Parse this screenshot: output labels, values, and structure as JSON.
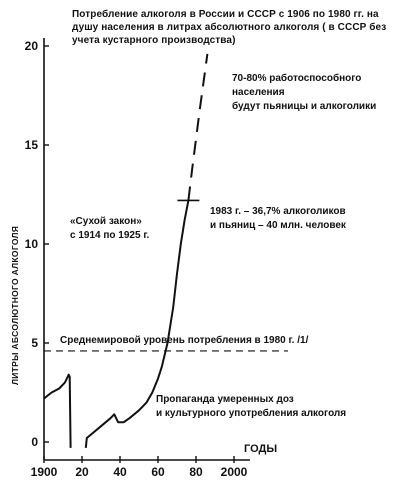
{
  "chart_data": {
    "type": "line",
    "title": "Потребление алкоголя в России и СССР с 1906 по 1980 гг. на душу населения в литрах абсолютного алкоголя ( в СССР без учета кустарного производства)",
    "ylabel": "ЛИТРЫ АБСОЛЮТНОГО АЛКОГОЛЯ",
    "xlabel": "ГОДЫ",
    "xlim": [
      1900,
      2000
    ],
    "ylim": [
      0,
      20
    ],
    "x_ticks": [
      "1900",
      "20",
      "40",
      "60",
      "80",
      "2000"
    ],
    "x_tick_values": [
      1900,
      1920,
      1940,
      1960,
      1980,
      2000
    ],
    "y_ticks": [
      "0",
      "5",
      "10",
      "15",
      "20"
    ],
    "y_tick_values": [
      0,
      5,
      10,
      15,
      20
    ],
    "series": [
      {
        "style": "solid",
        "segments": [
          [
            [
              1900,
              2.2
            ],
            [
              1904,
              2.5
            ],
            [
              1908,
              2.7
            ],
            [
              1911,
              3.0
            ],
            [
              1913,
              3.4
            ],
            [
              1913.5,
              3.3
            ],
            [
              1914,
              -0.3
            ]
          ],
          [
            [
              1922,
              -0.3
            ],
            [
              1922.5,
              0.2
            ],
            [
              1925,
              0.4
            ],
            [
              1930,
              0.8
            ],
            [
              1935,
              1.2
            ],
            [
              1937,
              1.4
            ],
            [
              1939,
              1.0
            ],
            [
              1942,
              1.0
            ],
            [
              1945,
              1.2
            ],
            [
              1950,
              1.6
            ],
            [
              1954,
              2.0
            ],
            [
              1957,
              2.5
            ],
            [
              1960,
              3.2
            ],
            [
              1962,
              3.8
            ],
            [
              1965,
              5.0
            ],
            [
              1968,
              6.8
            ],
            [
              1970,
              8.5
            ],
            [
              1972,
              10.0
            ],
            [
              1974,
              11.2
            ],
            [
              1976,
              12.2
            ]
          ]
        ]
      },
      {
        "style": "dashed",
        "segments": [
          [
            [
              1976,
              12.2
            ],
            [
              1978,
              13.8
            ],
            [
              1980,
              15.3
            ],
            [
              1982,
              16.8
            ],
            [
              1984,
              18.2
            ],
            [
              1986,
              19.6
            ]
          ]
        ]
      }
    ],
    "reference_line": {
      "value": 4.6,
      "style": "dashed",
      "label": "Среднемировой уровень потребления в 1980 г. /1/"
    },
    "markers": [
      {
        "x": 1976,
        "y": 12.2,
        "shape": "tick"
      }
    ],
    "annotations": {
      "dry_law": [
        "«Сухой закон»",
        "с 1914 по 1925 г."
      ],
      "propaganda": [
        "Пропаганда умеренных доз",
        "и культурного употребления алкоголя"
      ],
      "drinkers_1983": [
        "1983 г. – 36,7% алкоголиков",
        "и пьяниц – 40 млн. человек"
      ],
      "forecast": [
        "70-80% работоспособного населения",
        "будут пьяницы и алкоголики"
      ]
    },
    "grid": false,
    "legend": "none"
  }
}
